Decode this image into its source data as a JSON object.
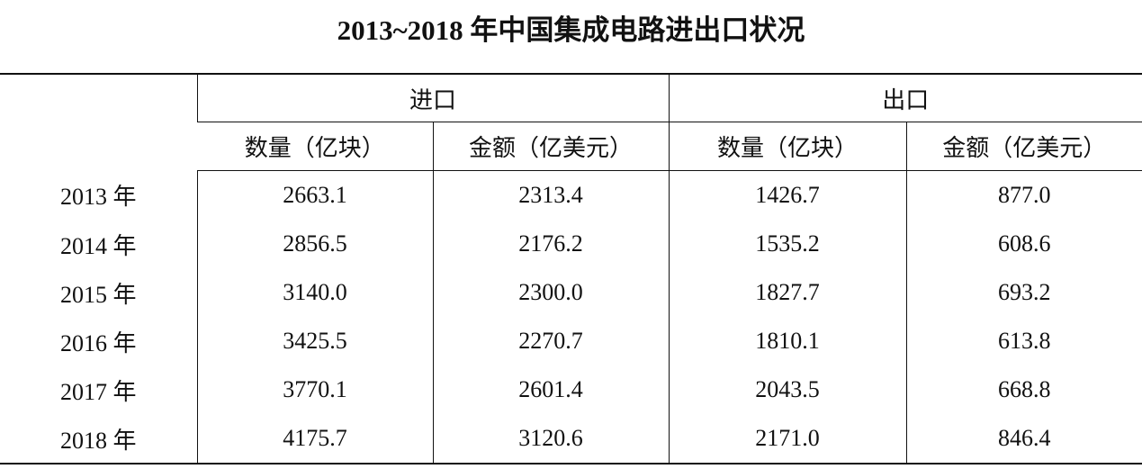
{
  "title": "2013~2018 年中国集成电路进出口状况",
  "table": {
    "groups": [
      "进口",
      "出口"
    ],
    "subheaders": [
      "数量（亿块）",
      "金额（亿美元）",
      "数量（亿块）",
      "金额（亿美元）"
    ],
    "rows": [
      [
        "2013 年",
        "2663.1",
        "2313.4",
        "1426.7",
        "877.0"
      ],
      [
        "2014 年",
        "2856.5",
        "2176.2",
        "1535.2",
        "608.6"
      ],
      [
        "2015 年",
        "3140.0",
        "2300.0",
        "1827.7",
        "693.2"
      ],
      [
        "2016 年",
        "3425.5",
        "2270.7",
        "1810.1",
        "613.8"
      ],
      [
        "2017 年",
        "3770.1",
        "2601.4",
        "2043.5",
        "668.8"
      ],
      [
        "2018 年",
        "4175.7",
        "3120.6",
        "2171.0",
        "846.4"
      ]
    ]
  }
}
